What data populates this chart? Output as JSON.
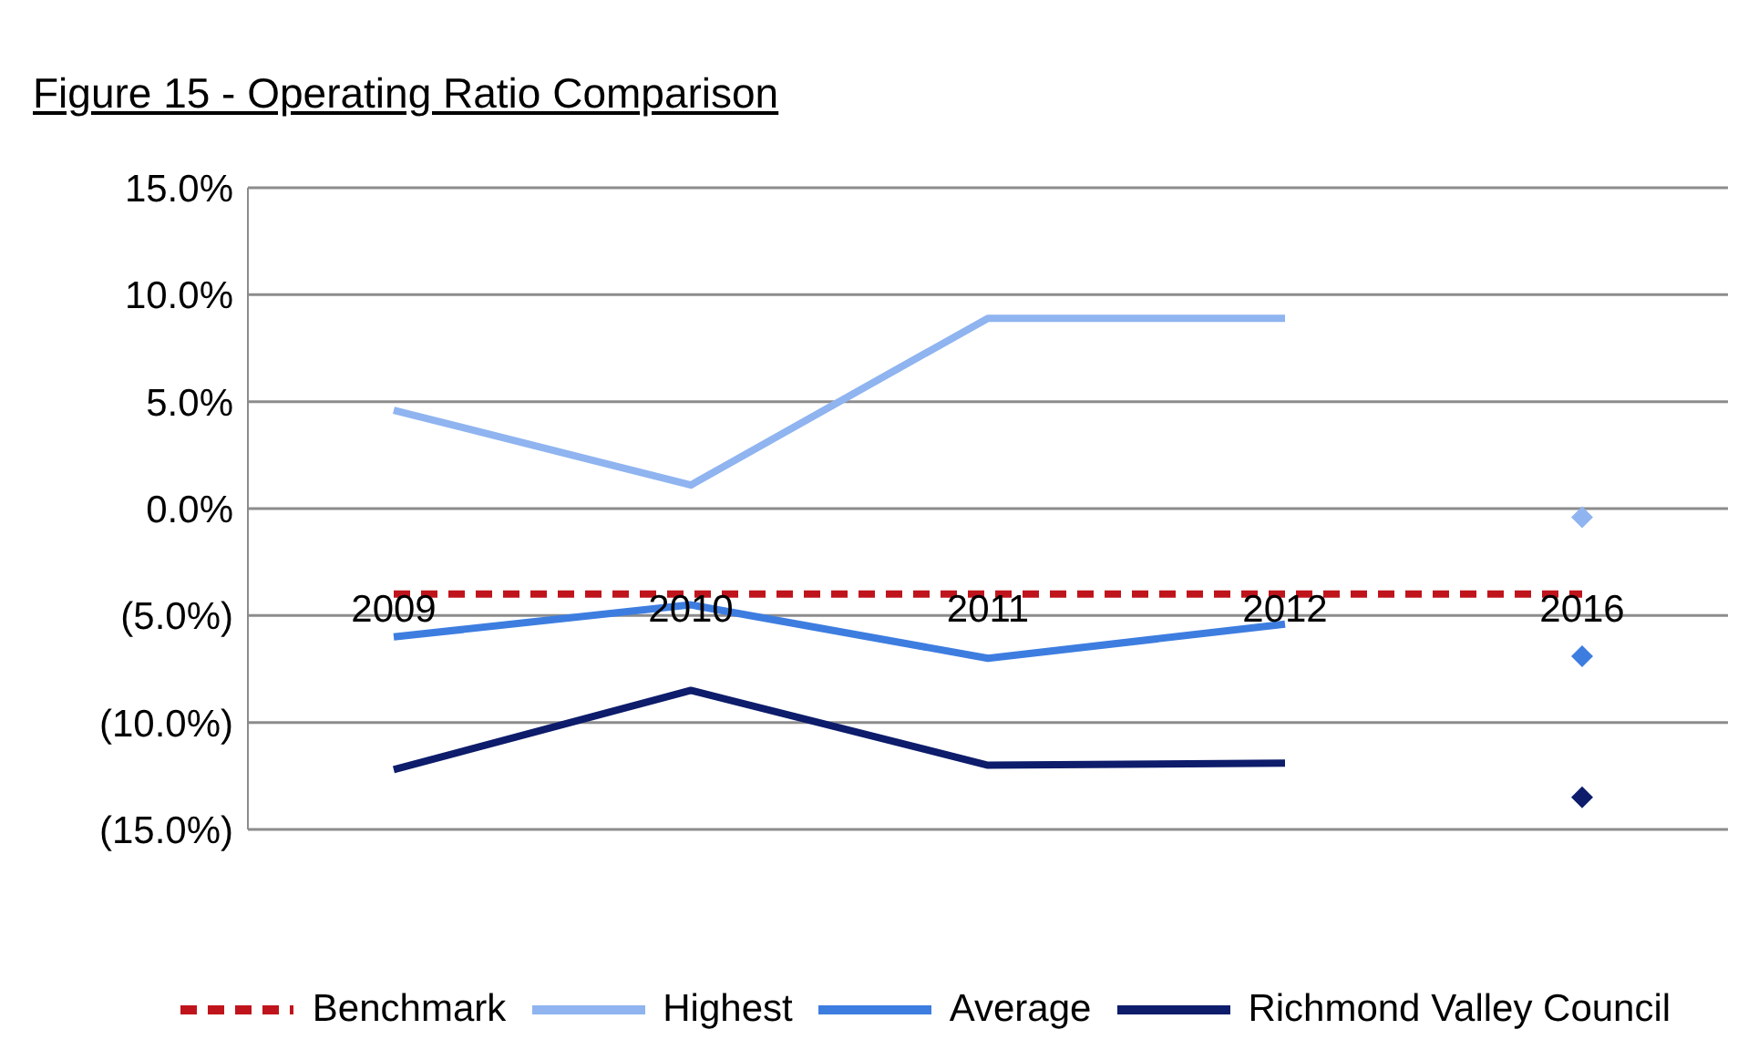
{
  "chart_data": {
    "type": "line",
    "title": "Figure 15 - Operating Ratio Comparison",
    "categories": [
      "2009",
      "2010",
      "2011",
      "2012",
      "2016"
    ],
    "series": [
      {
        "name": "Benchmark",
        "color": "#c0141c",
        "line_style": "dashed",
        "marker": "none",
        "values": [
          -4.0,
          -4.0,
          -4.0,
          -4.0,
          -4.0
        ]
      },
      {
        "name": "Highest",
        "color": "#8fb4f0",
        "marker": "none",
        "values": [
          4.6,
          1.1,
          8.9,
          8.9,
          null
        ]
      },
      {
        "name": "Average",
        "color": "#3d7de0",
        "marker": "none",
        "values": [
          -6.0,
          -4.5,
          -7.0,
          -5.4,
          null
        ]
      },
      {
        "name": "Richmond Valley Council",
        "color": "#0d1c6b",
        "marker": "none",
        "values": [
          -12.2,
          -8.5,
          -12.0,
          -11.9,
          null
        ]
      },
      {
        "type": "scatter",
        "color": "#8fb4f0",
        "marker": "diamond",
        "values": [
          null,
          null,
          null,
          null,
          -0.4
        ]
      },
      {
        "type": "scatter",
        "color": "#3d7de0",
        "marker": "diamond",
        "values": [
          null,
          null,
          null,
          null,
          -6.9
        ]
      },
      {
        "type": "scatter",
        "color": "#0d1c6b",
        "marker": "diamond",
        "values": [
          null,
          null,
          null,
          null,
          -13.5
        ]
      }
    ],
    "ylim": [
      -15,
      15
    ],
    "yticks": [
      {
        "value": -15,
        "label": "(15.0%)"
      },
      {
        "value": -10,
        "label": "(10.0%)"
      },
      {
        "value": -5,
        "label": "(5.0%)"
      },
      {
        "value": 0,
        "label": "0.0%"
      },
      {
        "value": 5,
        "label": "5.0%"
      },
      {
        "value": 10,
        "label": "10.0%"
      },
      {
        "value": 15,
        "label": "15.0%"
      }
    ],
    "grid": "y",
    "legend": "bottom"
  }
}
